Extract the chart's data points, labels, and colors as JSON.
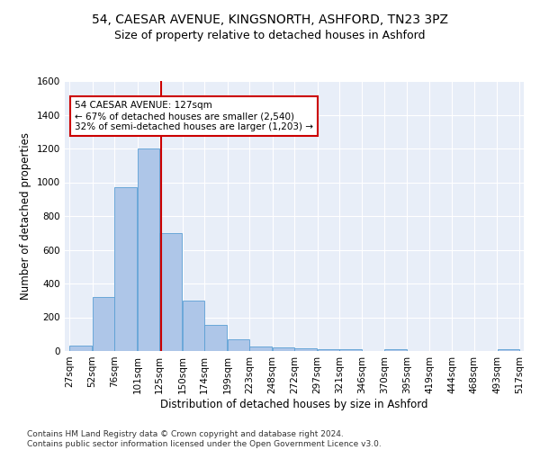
{
  "title": "54, CAESAR AVENUE, KINGSNORTH, ASHFORD, TN23 3PZ",
  "subtitle": "Size of property relative to detached houses in Ashford",
  "xlabel": "Distribution of detached houses by size in Ashford",
  "ylabel": "Number of detached properties",
  "bar_color": "#aec6e8",
  "bar_edgecolor": "#5a9fd4",
  "background_color": "#e8eef8",
  "grid_color": "#ffffff",
  "annotation_text": "54 CAESAR AVENUE: 127sqm\n← 67% of detached houses are smaller (2,540)\n32% of semi-detached houses are larger (1,203) →",
  "vline_x": 127,
  "vline_color": "#cc0000",
  "bin_edges": [
    27,
    52,
    76,
    101,
    125,
    150,
    174,
    199,
    223,
    248,
    272,
    297,
    321,
    346,
    370,
    395,
    419,
    444,
    468,
    493,
    517
  ],
  "bin_labels": [
    "27sqm",
    "52sqm",
    "76sqm",
    "101sqm",
    "125sqm",
    "150sqm",
    "174sqm",
    "199sqm",
    "223sqm",
    "248sqm",
    "272sqm",
    "297sqm",
    "321sqm",
    "346sqm",
    "370sqm",
    "395sqm",
    "419sqm",
    "444sqm",
    "468sqm",
    "493sqm",
    "517sqm"
  ],
  "bar_heights": [
    30,
    320,
    970,
    1200,
    700,
    300,
    155,
    70,
    25,
    20,
    15,
    12,
    10,
    0,
    12,
    0,
    0,
    0,
    0,
    12
  ],
  "ylim": [
    0,
    1600
  ],
  "yticks": [
    0,
    200,
    400,
    600,
    800,
    1000,
    1200,
    1400,
    1600
  ],
  "footnote": "Contains HM Land Registry data © Crown copyright and database right 2024.\nContains public sector information licensed under the Open Government Licence v3.0.",
  "title_fontsize": 10,
  "subtitle_fontsize": 9,
  "xlabel_fontsize": 8.5,
  "ylabel_fontsize": 8.5,
  "tick_fontsize": 7.5,
  "annot_fontsize": 7.5,
  "footnote_fontsize": 6.5
}
